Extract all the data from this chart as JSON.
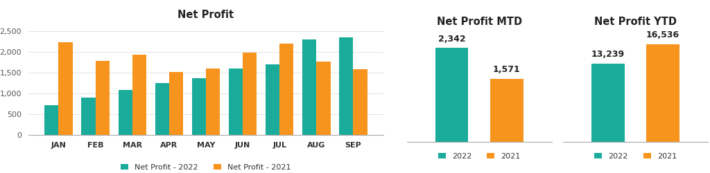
{
  "bar_chart": {
    "title": "Net Profit",
    "months": [
      "JAN",
      "FEB",
      "MAR",
      "APR",
      "MAY",
      "JUN",
      "JUL",
      "AUG",
      "SEP"
    ],
    "values_2022": [
      720,
      900,
      1080,
      1240,
      1360,
      1600,
      1690,
      2290,
      2340
    ],
    "values_2021": [
      2230,
      1780,
      1930,
      1510,
      1600,
      1980,
      2200,
      1760,
      1580
    ],
    "color_2022": "#1aab9b",
    "color_2021": "#f7941d",
    "legend_2022": "Net Profit - 2022",
    "legend_2021": "Net Profit - 2021",
    "ylim": [
      0,
      2700
    ],
    "yticks": [
      0,
      500,
      1000,
      1500,
      2000,
      2500
    ]
  },
  "mtd_chart": {
    "title": "Net Profit MTD",
    "value_2022": 2342,
    "value_2021": 1571,
    "label_2022": "2,342",
    "label_2021": "1,571",
    "color_2022": "#1aab9b",
    "color_2021": "#f7941d",
    "legend_2022": "2022",
    "legend_2021": "2021",
    "ylim": [
      0,
      2800
    ]
  },
  "ytd_chart": {
    "title": "Net Profit YTD",
    "value_2022": 13239,
    "value_2021": 16536,
    "label_2022": "13,239",
    "label_2021": "16,536",
    "color_2022": "#1aab9b",
    "color_2021": "#f7941d",
    "legend_2022": "2022",
    "legend_2021": "2021",
    "ylim": [
      0,
      19000
    ]
  },
  "background_color": "#ffffff",
  "title_fontsize": 10.5,
  "tick_fontsize": 8,
  "legend_fontsize": 8,
  "bar_value_fontsize": 9
}
